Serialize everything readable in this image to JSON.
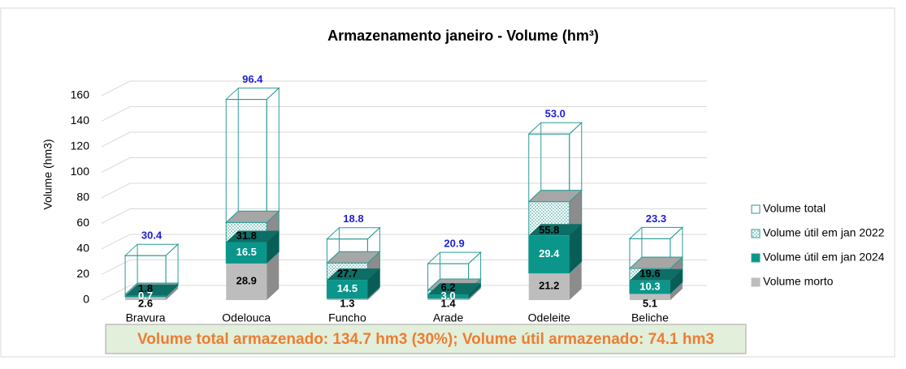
{
  "chart_data": {
    "type": "bar3d",
    "title": "Armazenamento janeiro - Volume (hm³)",
    "y_label": "Volume (hm3)",
    "annotation": "Volume total armazenado: 134.7 hm3 (30%); Volume útil armazenado: 74.1 hm3",
    "categories": [
      "Bravura",
      "Odelouca",
      "Funcho",
      "Arade",
      "Odeleite",
      "Beliche"
    ],
    "series": [
      {
        "name": "Volume total",
        "color": "#2a9d95",
        "values": [
          30.4,
          96.4,
          18.8,
          20.9,
          53.0,
          23.3
        ],
        "value_labels": [
          "30.4",
          "96.4",
          "18.8",
          "20.9",
          "53.0",
          "23.3"
        ]
      },
      {
        "name": "Volume útil em jan 2022",
        "color": "#2a9d95",
        "values": [
          1.8,
          31.8,
          27.7,
          6.2,
          55.8,
          19.6
        ]
      },
      {
        "name": "Volume útil em jan 2024",
        "color": "#0a968a",
        "values": [
          0.7,
          16.5,
          14.5,
          3.0,
          29.4,
          10.3
        ],
        "value_labels": [
          "0.7",
          "16.5",
          "14.5",
          "3.0",
          "29.4",
          "10.3"
        ]
      },
      {
        "name": "Volume morto",
        "color": "#bdbdbd",
        "values": [
          2.6,
          28.9,
          1.3,
          1.4,
          21.2,
          5.1
        ]
      }
    ],
    "ylim": [
      0,
      160
    ],
    "yticks": [
      0,
      20,
      40,
      60,
      80,
      100,
      120,
      140,
      160
    ],
    "grid": true,
    "legend": "right"
  }
}
